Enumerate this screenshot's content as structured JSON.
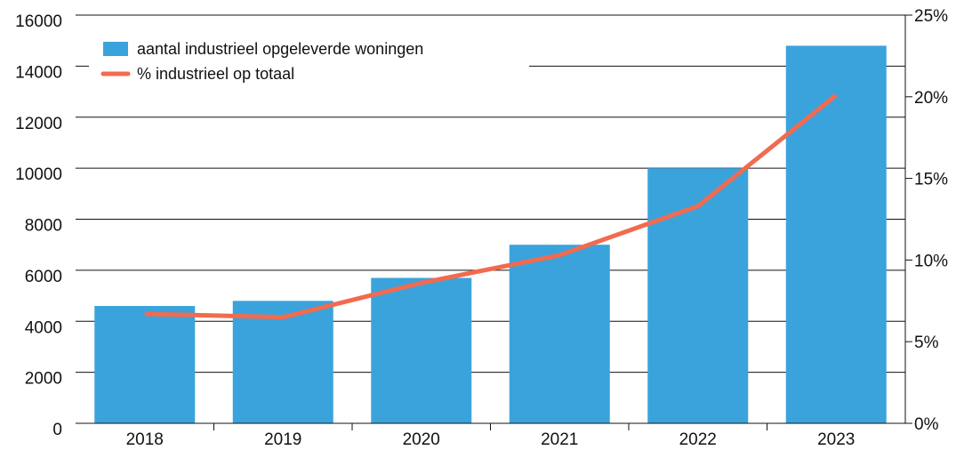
{
  "chart_data": {
    "type": "bar-line",
    "categories": [
      "2018",
      "2019",
      "2020",
      "2021",
      "2022",
      "2023"
    ],
    "series": [
      {
        "name": "aantal industrieel opgeleverde woningen",
        "type": "bar",
        "color": "#3ba3db",
        "values": [
          4600,
          4800,
          5700,
          7000,
          10000,
          14800
        ]
      },
      {
        "name": "% industrieel op totaal",
        "type": "line",
        "axis": "y2",
        "color": "#f26a4f",
        "values": [
          6.7,
          6.5,
          8.6,
          10.3,
          13.3,
          20.1
        ]
      }
    ],
    "ylim": [
      0,
      16000
    ],
    "yticks": [
      0,
      2000,
      4000,
      6000,
      8000,
      10000,
      12000,
      14000,
      16000
    ],
    "y2lim": [
      0,
      25
    ],
    "y2ticks": [
      {
        "value": 0,
        "label": "0%"
      },
      {
        "value": 5,
        "label": "5%"
      },
      {
        "value": 10,
        "label": "10%"
      },
      {
        "value": 15,
        "label": "15%"
      },
      {
        "value": 20,
        "label": "20%"
      },
      {
        "value": 25,
        "label": "25%"
      }
    ],
    "grid": true,
    "legend": "top-left"
  }
}
